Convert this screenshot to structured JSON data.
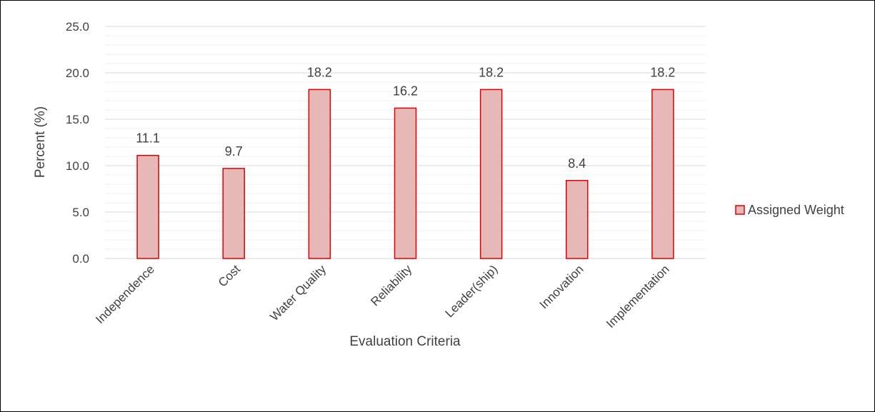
{
  "chart_data": {
    "type": "bar",
    "title": "",
    "xlabel": "Evaluation Criteria",
    "ylabel": "Percent (%)",
    "ylim": [
      0,
      25
    ],
    "y_ticks": [
      "0.0",
      "5.0",
      "10.0",
      "15.0",
      "20.0",
      "25.0"
    ],
    "grid": true,
    "legend_position": "right",
    "categories": [
      "Independence",
      "Cost",
      "Water Quality",
      "Reliability",
      "Leader(ship)",
      "Innovation",
      "Implementation"
    ],
    "series": [
      {
        "name": "Assigned Weight",
        "values": [
          11.1,
          9.7,
          18.2,
          16.2,
          18.2,
          8.4,
          18.2
        ],
        "labels": [
          "11.1",
          "9.7",
          "18.2",
          "16.2",
          "18.2",
          "8.4",
          "18.2"
        ],
        "fill": "#e6b8b7",
        "stroke": "#e00000"
      }
    ]
  }
}
